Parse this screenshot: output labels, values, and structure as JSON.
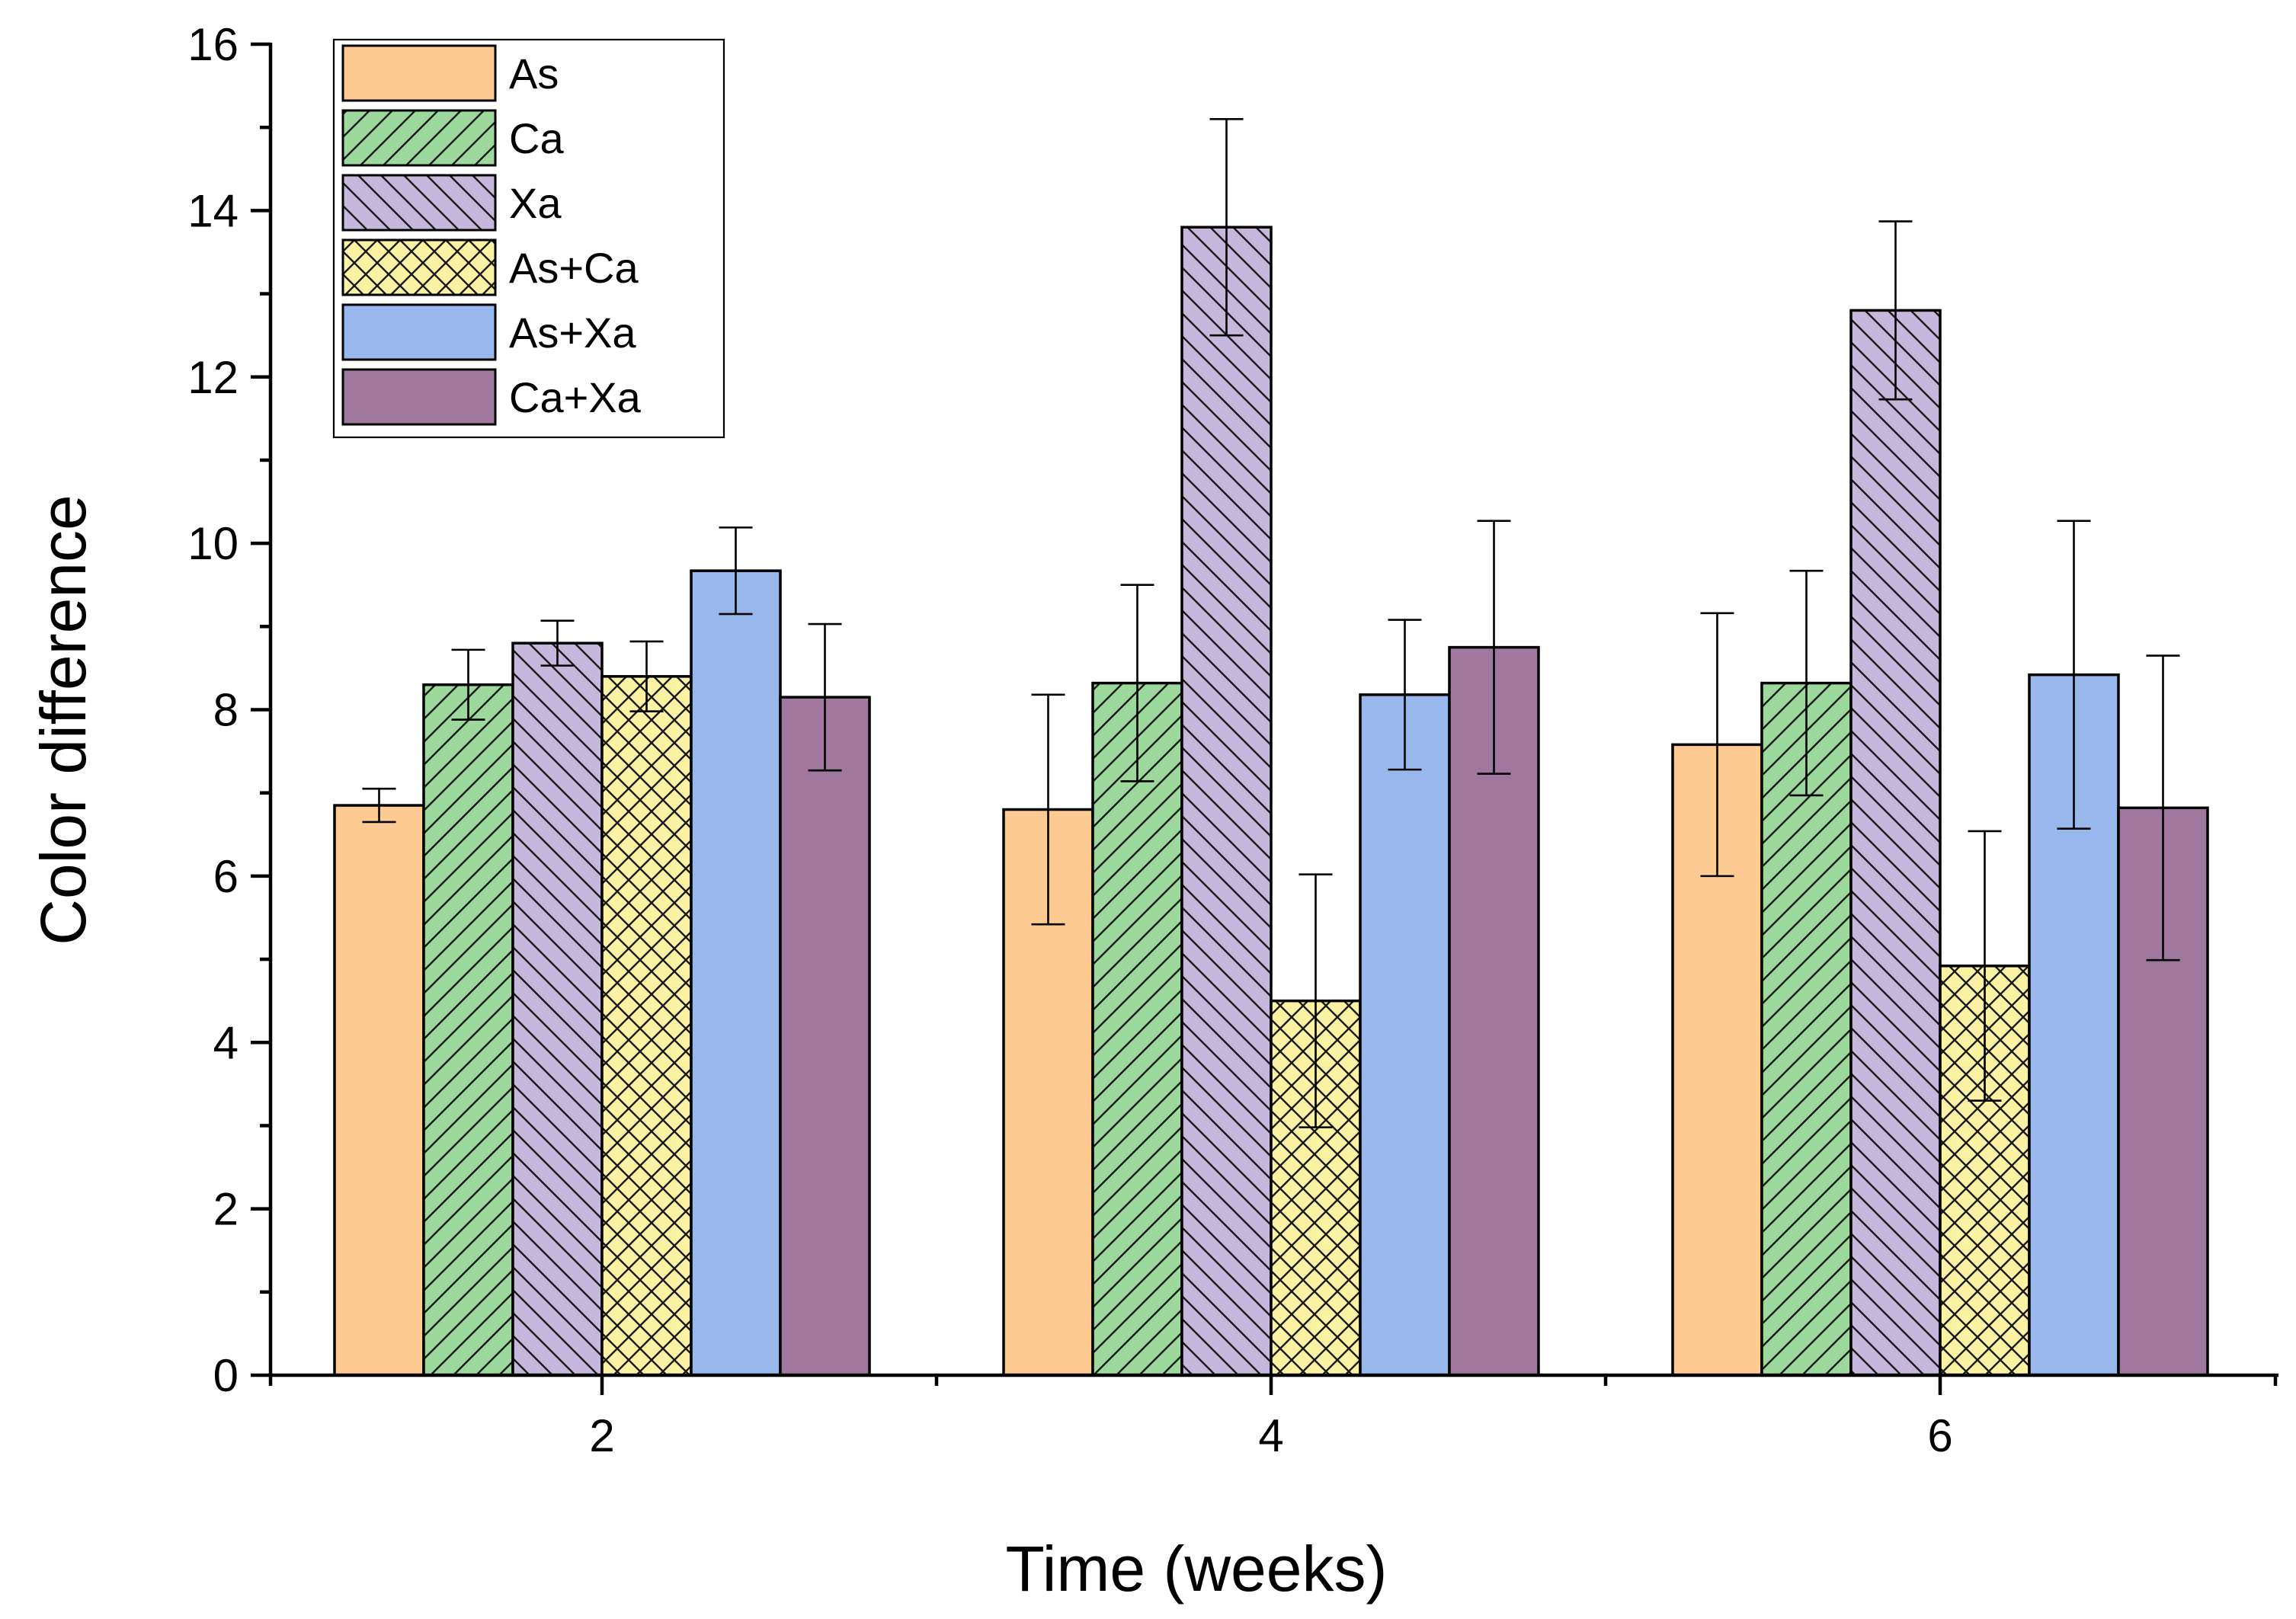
{
  "chart_data": {
    "type": "bar",
    "title": "",
    "xlabel": "Time (weeks)",
    "ylabel": "Color difference",
    "categories": [
      "2",
      "4",
      "6"
    ],
    "ylim": [
      0,
      16
    ],
    "yticks": [
      0,
      2,
      4,
      6,
      8,
      10,
      12,
      14,
      16
    ],
    "grid": false,
    "legend_position": "top-left",
    "series": [
      {
        "name": "As",
        "color": "#FDCB92",
        "pattern": "none",
        "values": [
          6.85,
          6.8,
          7.58
        ],
        "errors": [
          0.2,
          1.38,
          1.58
        ]
      },
      {
        "name": "Ca",
        "color": "#9DD89D",
        "pattern": "forward-diagonal",
        "values": [
          8.3,
          8.32,
          8.32
        ],
        "errors": [
          0.42,
          1.18,
          1.35
        ]
      },
      {
        "name": "Xa",
        "color": "#C6B8DD",
        "pattern": "backward-diagonal",
        "values": [
          8.8,
          13.8,
          12.8
        ],
        "errors": [
          0.27,
          1.3,
          1.07
        ]
      },
      {
        "name": "As+Ca",
        "color": "#FBF3A3",
        "pattern": "crosshatch",
        "values": [
          8.4,
          4.5,
          4.92
        ],
        "errors": [
          0.42,
          1.52,
          1.62
        ]
      },
      {
        "name": "As+Xa",
        "color": "#98B7EC",
        "pattern": "none",
        "values": [
          9.67,
          8.18,
          8.42
        ],
        "errors": [
          0.52,
          0.9,
          1.85
        ]
      },
      {
        "name": "Ca+Xa",
        "color": "#A0789F",
        "pattern": "none",
        "values": [
          8.15,
          8.75,
          6.82
        ],
        "errors": [
          0.88,
          1.52,
          1.83
        ]
      }
    ]
  }
}
